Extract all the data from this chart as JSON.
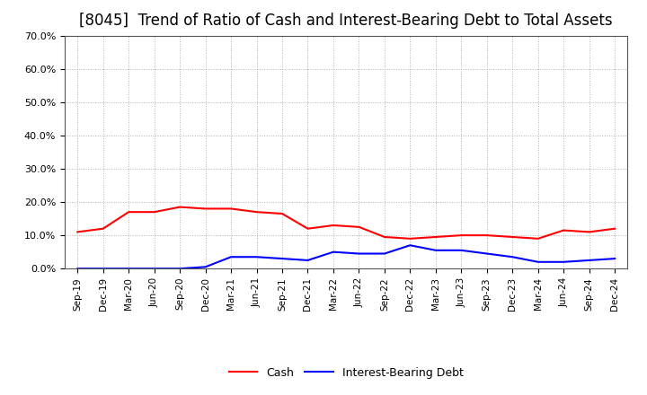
{
  "title": "[8045]  Trend of Ratio of Cash and Interest-Bearing Debt to Total Assets",
  "x_labels": [
    "Sep-19",
    "Dec-19",
    "Mar-20",
    "Jun-20",
    "Sep-20",
    "Dec-20",
    "Mar-21",
    "Jun-21",
    "Sep-21",
    "Dec-21",
    "Mar-22",
    "Jun-22",
    "Sep-22",
    "Dec-22",
    "Mar-23",
    "Jun-23",
    "Sep-23",
    "Dec-23",
    "Mar-24",
    "Jun-24",
    "Sep-24",
    "Dec-24"
  ],
  "cash": [
    11.0,
    12.0,
    17.0,
    17.0,
    18.5,
    18.0,
    18.0,
    17.0,
    16.5,
    12.0,
    13.0,
    12.5,
    9.5,
    9.0,
    9.5,
    10.0,
    10.0,
    9.5,
    9.0,
    11.5,
    11.0,
    12.0
  ],
  "ibd": [
    0.0,
    0.0,
    0.0,
    0.0,
    0.0,
    0.5,
    3.5,
    3.5,
    3.0,
    2.5,
    5.0,
    4.5,
    4.5,
    7.0,
    5.5,
    5.5,
    4.5,
    3.5,
    2.0,
    2.0,
    2.5,
    3.0
  ],
  "cash_color": "#ff0000",
  "ibd_color": "#0000ff",
  "ylim": [
    0,
    70
  ],
  "yticks": [
    0,
    10,
    20,
    30,
    40,
    50,
    60,
    70
  ],
  "bg_color": "#ffffff",
  "plot_bg_color": "#ffffff",
  "grid_color": "#b0b0b0",
  "legend_cash": "Cash",
  "legend_ibd": "Interest-Bearing Debt",
  "title_fontsize": 12,
  "line_width": 1.5
}
